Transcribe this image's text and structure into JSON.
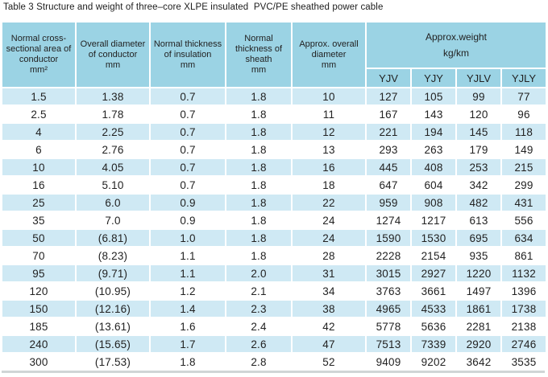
{
  "title": "Table 3 Structure and weight of three–core XLPE insulated  PVC/PE sheathed power cable",
  "table": {
    "columns": [
      {
        "label": "Normal cross-sectional area of conductor",
        "unit": "mm²"
      },
      {
        "label": "Overall diameter of conductor",
        "unit": "mm"
      },
      {
        "label": "Normal thickness of insulation",
        "unit": "mm"
      },
      {
        "label": "Normal thickness of sheath",
        "unit": "mm"
      },
      {
        "label": "Approx. overall diameter",
        "unit": "mm"
      },
      {
        "label": "Approx.weight",
        "unit": "kg/km",
        "subcolumns": [
          "YJV",
          "YJY",
          "YJLV",
          "YJLY"
        ]
      }
    ],
    "rows": [
      [
        "1.5",
        "1.38",
        "0.7",
        "1.8",
        "10",
        "127",
        "105",
        "99",
        "77"
      ],
      [
        "2.5",
        "1.78",
        "0.7",
        "1.8",
        "11",
        "167",
        "143",
        "120",
        "96"
      ],
      [
        "4",
        "2.25",
        "0.7",
        "1.8",
        "12",
        "221",
        "194",
        "145",
        "118"
      ],
      [
        "6",
        "2.76",
        "0.7",
        "1.8",
        "13",
        "293",
        "263",
        "179",
        "149"
      ],
      [
        "10",
        "4.05",
        "0.7",
        "1.8",
        "16",
        "445",
        "408",
        "253",
        "215"
      ],
      [
        "16",
        "5.10",
        "0.7",
        "1.8",
        "18",
        "647",
        "604",
        "342",
        "299"
      ],
      [
        "25",
        "6.0",
        "0.9",
        "1.8",
        "22",
        "959",
        "908",
        "482",
        "431"
      ],
      [
        "35",
        "7.0",
        "0.9",
        "1.8",
        "24",
        "1274",
        "1217",
        "613",
        "556"
      ],
      [
        "50",
        "(6.81)",
        "1.0",
        "1.8",
        "24",
        "1590",
        "1530",
        "695",
        "634"
      ],
      [
        "70",
        "(8.23)",
        "1.1",
        "1.8",
        "28",
        "2228",
        "2154",
        "935",
        "861"
      ],
      [
        "95",
        "(9.71)",
        "1.1",
        "2.0",
        "31",
        "3015",
        "2927",
        "1220",
        "1132"
      ],
      [
        "120",
        "(10.95)",
        "1.2",
        "2.1",
        "34",
        "3763",
        "3661",
        "1497",
        "1396"
      ],
      [
        "150",
        "(12.16)",
        "1.4",
        "2.3",
        "38",
        "4965",
        "4533",
        "1861",
        "1738"
      ],
      [
        "185",
        "(13.61)",
        "1.6",
        "2.4",
        "42",
        "5778",
        "5636",
        "2281",
        "2138"
      ],
      [
        "240",
        "(15.65)",
        "1.7",
        "2.6",
        "47",
        "7513",
        "7339",
        "2920",
        "2746"
      ],
      [
        "300",
        "(17.53)",
        "1.8",
        "2.8",
        "52",
        "9409",
        "9202",
        "3642",
        "3535"
      ]
    ]
  },
  "colors": {
    "header_bg": "#9bd3e4",
    "row_alt_bg": "#cfe9f4",
    "row_bg": "#ffffff",
    "text": "#222222",
    "title_text": "#1c1c1c",
    "rule": "#aab2b5"
  }
}
